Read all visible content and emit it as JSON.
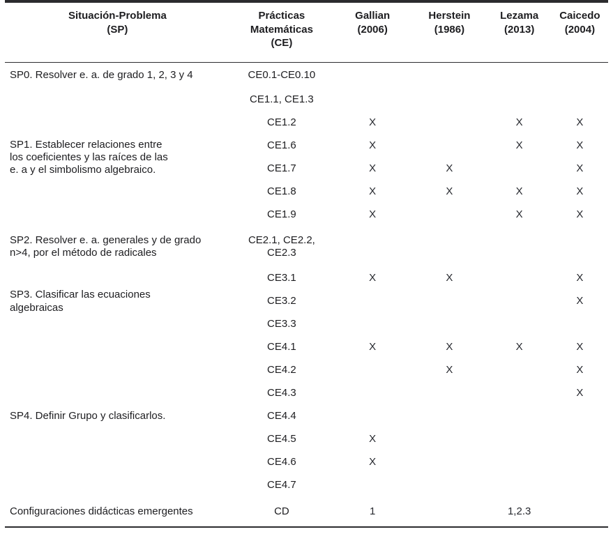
{
  "table": {
    "headers": {
      "sp": "Situación-Problema\n(SP)",
      "ce": "Prácticas\nMatemáticas\n(CE)",
      "authors": [
        "Gallian\n(2006)",
        "Herstein\n(1986)",
        "Lezama\n(2013)",
        "Caicedo\n(2004)"
      ]
    },
    "rows": [
      {
        "sp": "SP0. Resolver e. a. de grado 1, 2, 3 y 4",
        "ce": "CE0.1-CE0.10",
        "marks": [
          "",
          "",
          "",
          ""
        ]
      },
      {
        "sp": "SP1. Establecer relaciones entre\nlos coeficientes y las raíces de las\ne. a y el simbolismo algebraico.",
        "ce": "CE1.1, CE1.3",
        "marks": [
          "",
          "",
          "",
          ""
        ]
      },
      {
        "ce": "CE1.2",
        "marks": [
          "X",
          "",
          "X",
          "X"
        ]
      },
      {
        "ce": "CE1.6",
        "marks": [
          "X",
          "",
          "X",
          "X"
        ]
      },
      {
        "ce": "CE1.7",
        "marks": [
          "X",
          "X",
          "",
          "X"
        ]
      },
      {
        "ce": "CE1.8",
        "marks": [
          "X",
          "X",
          "X",
          "X"
        ]
      },
      {
        "ce": "CE1.9",
        "marks": [
          "X",
          "",
          "X",
          "X"
        ]
      },
      {
        "sp": "SP2. Resolver e. a. generales y de grado\nn>4, por el método de radicales",
        "ce": "CE2.1, CE2.2,\nCE2.3",
        "marks": [
          "",
          "",
          "",
          ""
        ]
      },
      {
        "sp": "SP3. Clasificar las ecuaciones\nalgebraicas",
        "ce": "CE3.1",
        "marks": [
          "X",
          "X",
          "",
          "X"
        ]
      },
      {
        "ce": "CE3.2",
        "marks": [
          "",
          "",
          "",
          "X"
        ]
      },
      {
        "ce": "CE3.3",
        "marks": [
          "",
          "",
          "",
          ""
        ]
      },
      {
        "sp": "SP4. Definir Grupo y clasificarlos.",
        "ce": "CE4.1",
        "marks": [
          "X",
          "X",
          "X",
          "X"
        ]
      },
      {
        "ce": "CE4.2",
        "marks": [
          "",
          "X",
          "",
          "X"
        ]
      },
      {
        "ce": "CE4.3",
        "marks": [
          "",
          "",
          "",
          "X"
        ]
      },
      {
        "ce": "CE4.4",
        "marks": [
          "",
          "",
          "",
          ""
        ]
      },
      {
        "ce": "CE4.5",
        "marks": [
          "X",
          "",
          "",
          ""
        ]
      },
      {
        "ce": "CE4.6",
        "marks": [
          "X",
          "",
          "",
          ""
        ]
      },
      {
        "ce": "CE4.7",
        "marks": [
          "",
          "",
          "",
          ""
        ]
      },
      {
        "sp": "Configuraciones didácticas emergentes",
        "ce": "CD",
        "marks": [
          "1",
          "",
          "1,2.3",
          ""
        ]
      }
    ],
    "colors": {
      "text": "#1d1d20",
      "rule": "#2b2b2e",
      "background": "#ffffff"
    }
  }
}
